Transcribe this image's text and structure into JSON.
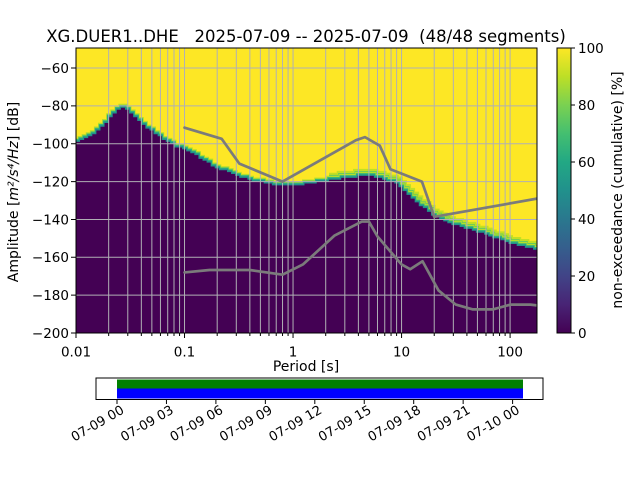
{
  "chart_data": {
    "type": "heatmap",
    "title": "XG.DUER1..DHE   2025-07-09 -- 2025-07-09  (48/48 segments)",
    "xlabel": "Period [s]",
    "ylabel_prefix": "Amplitude [",
    "ylabel_math": "m²/s⁴/Hz",
    "ylabel_suffix": "] [dB]",
    "x_scale": "log",
    "xlim": [
      0.01,
      177
    ],
    "ylim": [
      -200,
      -49.4
    ],
    "grid": true,
    "x_tick_labels": [
      "0.01",
      "0.1",
      "1",
      "10",
      "100"
    ],
    "x_tick_values": [
      0.01,
      0.1,
      1,
      10,
      100
    ],
    "y_tick_labels": [
      "−60",
      "−80",
      "−100",
      "−120",
      "−140",
      "−160",
      "−180",
      "−200"
    ],
    "y_tick_values": [
      -60,
      -80,
      -100,
      -120,
      -140,
      -160,
      -180,
      -200
    ],
    "colormap": "viridis",
    "colorbar": {
      "label": "non-exceedance (cumulative) [%]",
      "tick_labels": [
        "0",
        "20",
        "40",
        "60",
        "80",
        "100"
      ],
      "tick_values": [
        0,
        20,
        40,
        60,
        80,
        100
      ],
      "stops": [
        {
          "o": 0.0,
          "c": "#440154"
        },
        {
          "o": 0.1,
          "c": "#482475"
        },
        {
          "o": 0.2,
          "c": "#414487"
        },
        {
          "o": 0.3,
          "c": "#355f8d"
        },
        {
          "o": 0.4,
          "c": "#2a788e"
        },
        {
          "o": 0.5,
          "c": "#21918c"
        },
        {
          "o": 0.6,
          "c": "#22a884"
        },
        {
          "o": 0.7,
          "c": "#44bf70"
        },
        {
          "o": 0.8,
          "c": "#7ad151"
        },
        {
          "o": 0.9,
          "c": "#bddf26"
        },
        {
          "o": 1.0,
          "c": "#fde725"
        }
      ]
    },
    "cumulative_boundary_50pct": {
      "log10_period": [
        -2.0,
        -1.93,
        -1.83,
        -1.73,
        -1.66,
        -1.576,
        -1.5,
        -1.41,
        -1.32,
        -1.2,
        -1.09,
        -0.95,
        -0.81,
        -0.7,
        -0.53,
        -0.4,
        -0.21,
        -0.07,
        0.07,
        0.25,
        0.43,
        0.57,
        0.69,
        0.8,
        0.94,
        1.08,
        1.22,
        1.33,
        1.45,
        1.59,
        1.73,
        1.86,
        2.0,
        2.14,
        2.248
      ],
      "db": [
        -99.7,
        -98.0,
        -94.9,
        -89.6,
        -84.9,
        -81.1,
        -83.2,
        -88.5,
        -92.8,
        -97.6,
        -101.3,
        -104.4,
        -109.2,
        -112.9,
        -116.6,
        -119.2,
        -121.3,
        -122.4,
        -121.9,
        -120.3,
        -118.7,
        -117.7,
        -117.1,
        -118.2,
        -120.8,
        -128.2,
        -134.6,
        -139.3,
        -142.5,
        -144.6,
        -147.2,
        -149.9,
        -152.5,
        -154.6,
        -155.7
      ]
    },
    "noise_models": {
      "color": "#7b7b7b",
      "nhnm": {
        "period": [
          0.1,
          0.22,
          0.32,
          0.8,
          3.8,
          4.6,
          6.3,
          7.9,
          15.4,
          20,
          177
        ],
        "db": [
          -91.5,
          -97.4,
          -110.5,
          -120.0,
          -98.1,
          -96.5,
          -101.0,
          -113.5,
          -120.0,
          -138.6,
          -129.0
        ]
      },
      "nlnm": {
        "period": [
          0.1,
          0.17,
          0.4,
          0.8,
          1.24,
          2.4,
          4.3,
          5.0,
          6.0,
          10.0,
          12.0,
          15.6,
          21.9,
          31.6,
          45,
          70,
          101,
          154,
          177
        ],
        "db": [
          -168.0,
          -166.7,
          -166.7,
          -169.2,
          -163.7,
          -148.6,
          -141.1,
          -141.1,
          -149.0,
          -163.8,
          -166.3,
          -162.1,
          -177.5,
          -185.0,
          -187.5,
          -187.5,
          -185.0,
          -185.0,
          -185.4
        ]
      }
    },
    "colors": {
      "high": "#fde725",
      "low": "#440154",
      "grid": "#b0b0b5",
      "band": [
        {
          "c": "#b5de2b",
          "w": 5.0,
          "dy": -1.5
        },
        {
          "c": "#35b779",
          "w": 3.5,
          "dy": -1.0
        },
        {
          "c": "#21918c",
          "w": 2.2,
          "dy": -0.5
        }
      ],
      "band_wide": [
        {
          "c": "#c2df23",
          "w": 9.0,
          "dy": -2.5
        },
        {
          "c": "#5ec962",
          "w": 6.0,
          "dy": -1.8
        },
        {
          "c": "#25ac82",
          "w": 3.5,
          "dy": -0.9
        }
      ]
    }
  },
  "timeline": {
    "tick_labels": [
      "07-09 00",
      "07-09 03",
      "07-09 06",
      "07-09 09",
      "07-09 12",
      "07-09 15",
      "07-09 18",
      "07-09 21",
      "07-10 00"
    ],
    "coverage": {
      "top_color": "#008000",
      "bottom_color": "#0000ff"
    }
  }
}
